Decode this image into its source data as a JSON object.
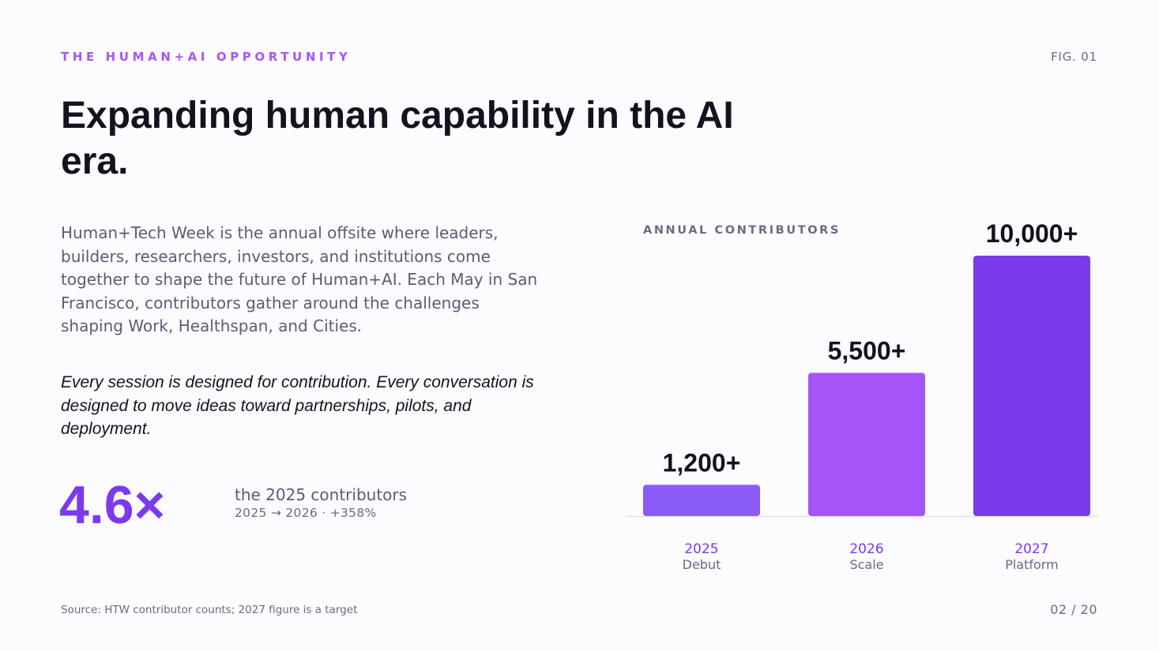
{
  "header": {
    "eyebrow": "THE HUMAN+AI OPPORTUNITY",
    "fig_label": "FIG. 01",
    "title": "Expanding human capability in the AI era."
  },
  "body": {
    "lede": "Human+Tech Week is the annual offsite where leaders, builders, researchers, investors, and institutions come together to shape the future of Human+AI. Each May in San Francisco, contributors gather around the challenges shaping Work, Healthspan, and Cities.",
    "quote": "Every session is designed for contribution. Every conversation is designed to move ideas toward partnerships, pilots, and deployment."
  },
  "stat": {
    "value": "4.6×",
    "text": "the 2025 contributors",
    "subtext": "2025 → 2026  ·  +358%"
  },
  "chart_data": {
    "type": "bar",
    "title": "ANNUAL CONTRIBUTORS",
    "categories": [
      "2025",
      "2026",
      "2027"
    ],
    "sublabels": [
      "Debut",
      "Scale",
      "Platform"
    ],
    "values": [
      1200,
      5500,
      10000
    ],
    "data_labels": [
      "1,200+",
      "5,500+",
      "10,000+"
    ],
    "ylim": [
      0,
      10000
    ],
    "grid": false,
    "colors": [
      "#8b5cf6",
      "#a855f7",
      "#7c3aed"
    ],
    "category_label_color": "#7c3aed",
    "sublabel_color": "#6b6b80",
    "data_label_color": "#13131f",
    "baseline_color": "#e2dff0"
  },
  "footer": {
    "source": "Source: HTW contributor counts; 2027 figure is a target",
    "page": "02 / 20"
  }
}
